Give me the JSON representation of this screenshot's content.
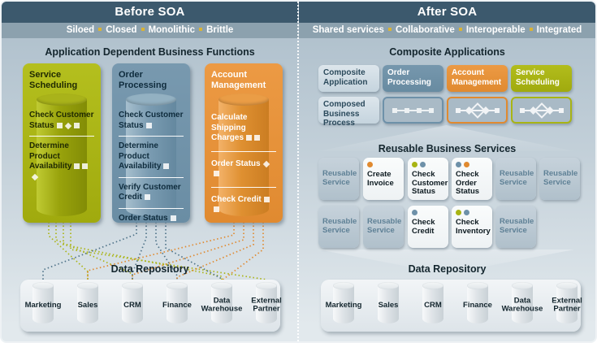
{
  "colors": {
    "olive": "#a8b414",
    "blue": "#6e91a9",
    "orange": "#e08a30",
    "gold": "#d9b335",
    "header_bg": "#3c596d",
    "band_bg": "#8ca1ae",
    "heading_text": "#14262e"
  },
  "repositories": [
    "Marketing",
    "Sales",
    "CRM",
    "Finance",
    "Data Warehouse",
    "External Partner"
  ],
  "before": {
    "title": "Before SOA",
    "traits": [
      "Siloed",
      "Closed",
      "Monolithic",
      "Brittle"
    ],
    "section_title": "Application Dependent Business Functions",
    "apps": [
      {
        "title": "Service Scheduling",
        "items": [
          {
            "label": "Check Customer Status",
            "icons": [
              "square",
              "diamond",
              "square"
            ]
          },
          {
            "label": "Determine Product Availability",
            "icons": [
              "square",
              "square",
              "diamond"
            ]
          }
        ]
      },
      {
        "title": "Order Processing",
        "items": [
          {
            "label": "Check Customer Status",
            "icons": [
              "square"
            ]
          },
          {
            "label": "Determine Product Availability",
            "icons": [
              "square"
            ]
          },
          {
            "label": "Verify Customer Credit",
            "icons": [
              "square"
            ]
          },
          {
            "label": "Order Status",
            "icons": [
              "square"
            ]
          }
        ]
      },
      {
        "title": "Account Management",
        "items": [
          {
            "label": "Calculate Shipping Charges",
            "icons": [
              "square",
              "square"
            ]
          },
          {
            "label": "Order Status",
            "icons": [
              "diamond",
              "square"
            ]
          },
          {
            "label": "Check Credit",
            "icons": [
              "square",
              "square"
            ]
          }
        ]
      }
    ],
    "repository_title": "Data Repository"
  },
  "after": {
    "title": "After SOA",
    "traits": [
      "Shared services",
      "Collaborative",
      "Interoperable",
      "Integrated"
    ],
    "section_title": "Composite Applications",
    "composite_row1": [
      {
        "label": "Composite Application"
      },
      {
        "label": "Order Processing"
      },
      {
        "label": "Account Management"
      },
      {
        "label": "Service Scheduling"
      }
    ],
    "composite_row2_label": "Composed Business Process",
    "services_title": "Reusable Business Services",
    "services_row1": [
      {
        "label": "Reusable Service",
        "dots": []
      },
      {
        "label": "Create Invoice",
        "dots": [
          "dot-orange"
        ]
      },
      {
        "label": "Check Customer Status",
        "dots": [
          "dot-olive",
          "dot-blue"
        ]
      },
      {
        "label": "Check Order Status",
        "dots": [
          "dot-blue",
          "dot-orange"
        ]
      },
      {
        "label": "Reusable Service",
        "dots": []
      },
      {
        "label": "Reusable Service",
        "dots": []
      }
    ],
    "services_row2": [
      {
        "label": "Reusable Service",
        "dots": []
      },
      {
        "label": "Reusable Service",
        "dots": []
      },
      {
        "label": "Check Credit",
        "dots": [
          "dot-blue"
        ]
      },
      {
        "label": "Check Inventory",
        "dots": [
          "dot-olive",
          "dot-blue"
        ]
      },
      {
        "label": "Reusable Service",
        "dots": []
      }
    ],
    "repository_title": "Data Repository"
  }
}
